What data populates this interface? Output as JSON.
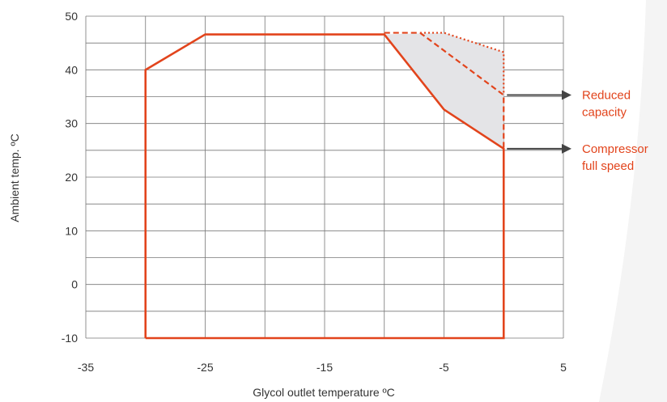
{
  "chart_data": {
    "type": "line",
    "xlabel": "Glycol outlet temperature ºC",
    "ylabel": "Ambient temp. ºC",
    "xlim": [
      -35,
      5
    ],
    "ylim": [
      -10,
      50
    ],
    "x_ticks": [
      "-35",
      "-25",
      "-15",
      "-5",
      "5"
    ],
    "x_tick_values": [
      -35,
      -25,
      -15,
      -5,
      5
    ],
    "y_ticks": [
      "50",
      "40",
      "30",
      "20",
      "10",
      "0",
      "-10"
    ],
    "y_tick_values": [
      50,
      40,
      30,
      20,
      10,
      0,
      -10
    ],
    "grid": true,
    "series": [
      {
        "style": "solid",
        "color": "#e2441c",
        "points": [
          [
            -30,
            -10
          ],
          [
            -30,
            40
          ],
          [
            -25,
            46.6
          ],
          [
            -10,
            46.6
          ],
          [
            -5,
            32.6
          ],
          [
            0,
            25.3
          ],
          [
            0,
            -10
          ],
          [
            -30,
            -10
          ]
        ]
      },
      {
        "style": "dashed",
        "color": "#e2441c",
        "points": [
          [
            -10,
            46.9
          ],
          [
            -7,
            46.9
          ],
          [
            0,
            35.3
          ],
          [
            0,
            25.3
          ]
        ]
      },
      {
        "style": "dotted",
        "color": "#e2441c",
        "points": [
          [
            -7,
            46.9
          ],
          [
            -5,
            46.9
          ],
          [
            0,
            43.3
          ],
          [
            0,
            35.3
          ]
        ]
      }
    ],
    "shaded_region": {
      "color": "#e4e4e7",
      "points": [
        [
          -10,
          46.6
        ],
        [
          -5,
          46.9
        ],
        [
          0,
          43.3
        ],
        [
          0,
          25.3
        ],
        [
          -5,
          32.6
        ]
      ]
    },
    "annotations": [
      {
        "lines": [
          "Reduced",
          "capacity"
        ],
        "arrow_from": [
          0,
          35.3
        ]
      },
      {
        "lines": [
          "Compressor",
          "full speed"
        ],
        "arrow_from": [
          0,
          25.3
        ]
      }
    ],
    "colors": {
      "line": "#e2441c",
      "grid": "#777777",
      "arrow": "#444444",
      "text": "#e2441c"
    }
  }
}
